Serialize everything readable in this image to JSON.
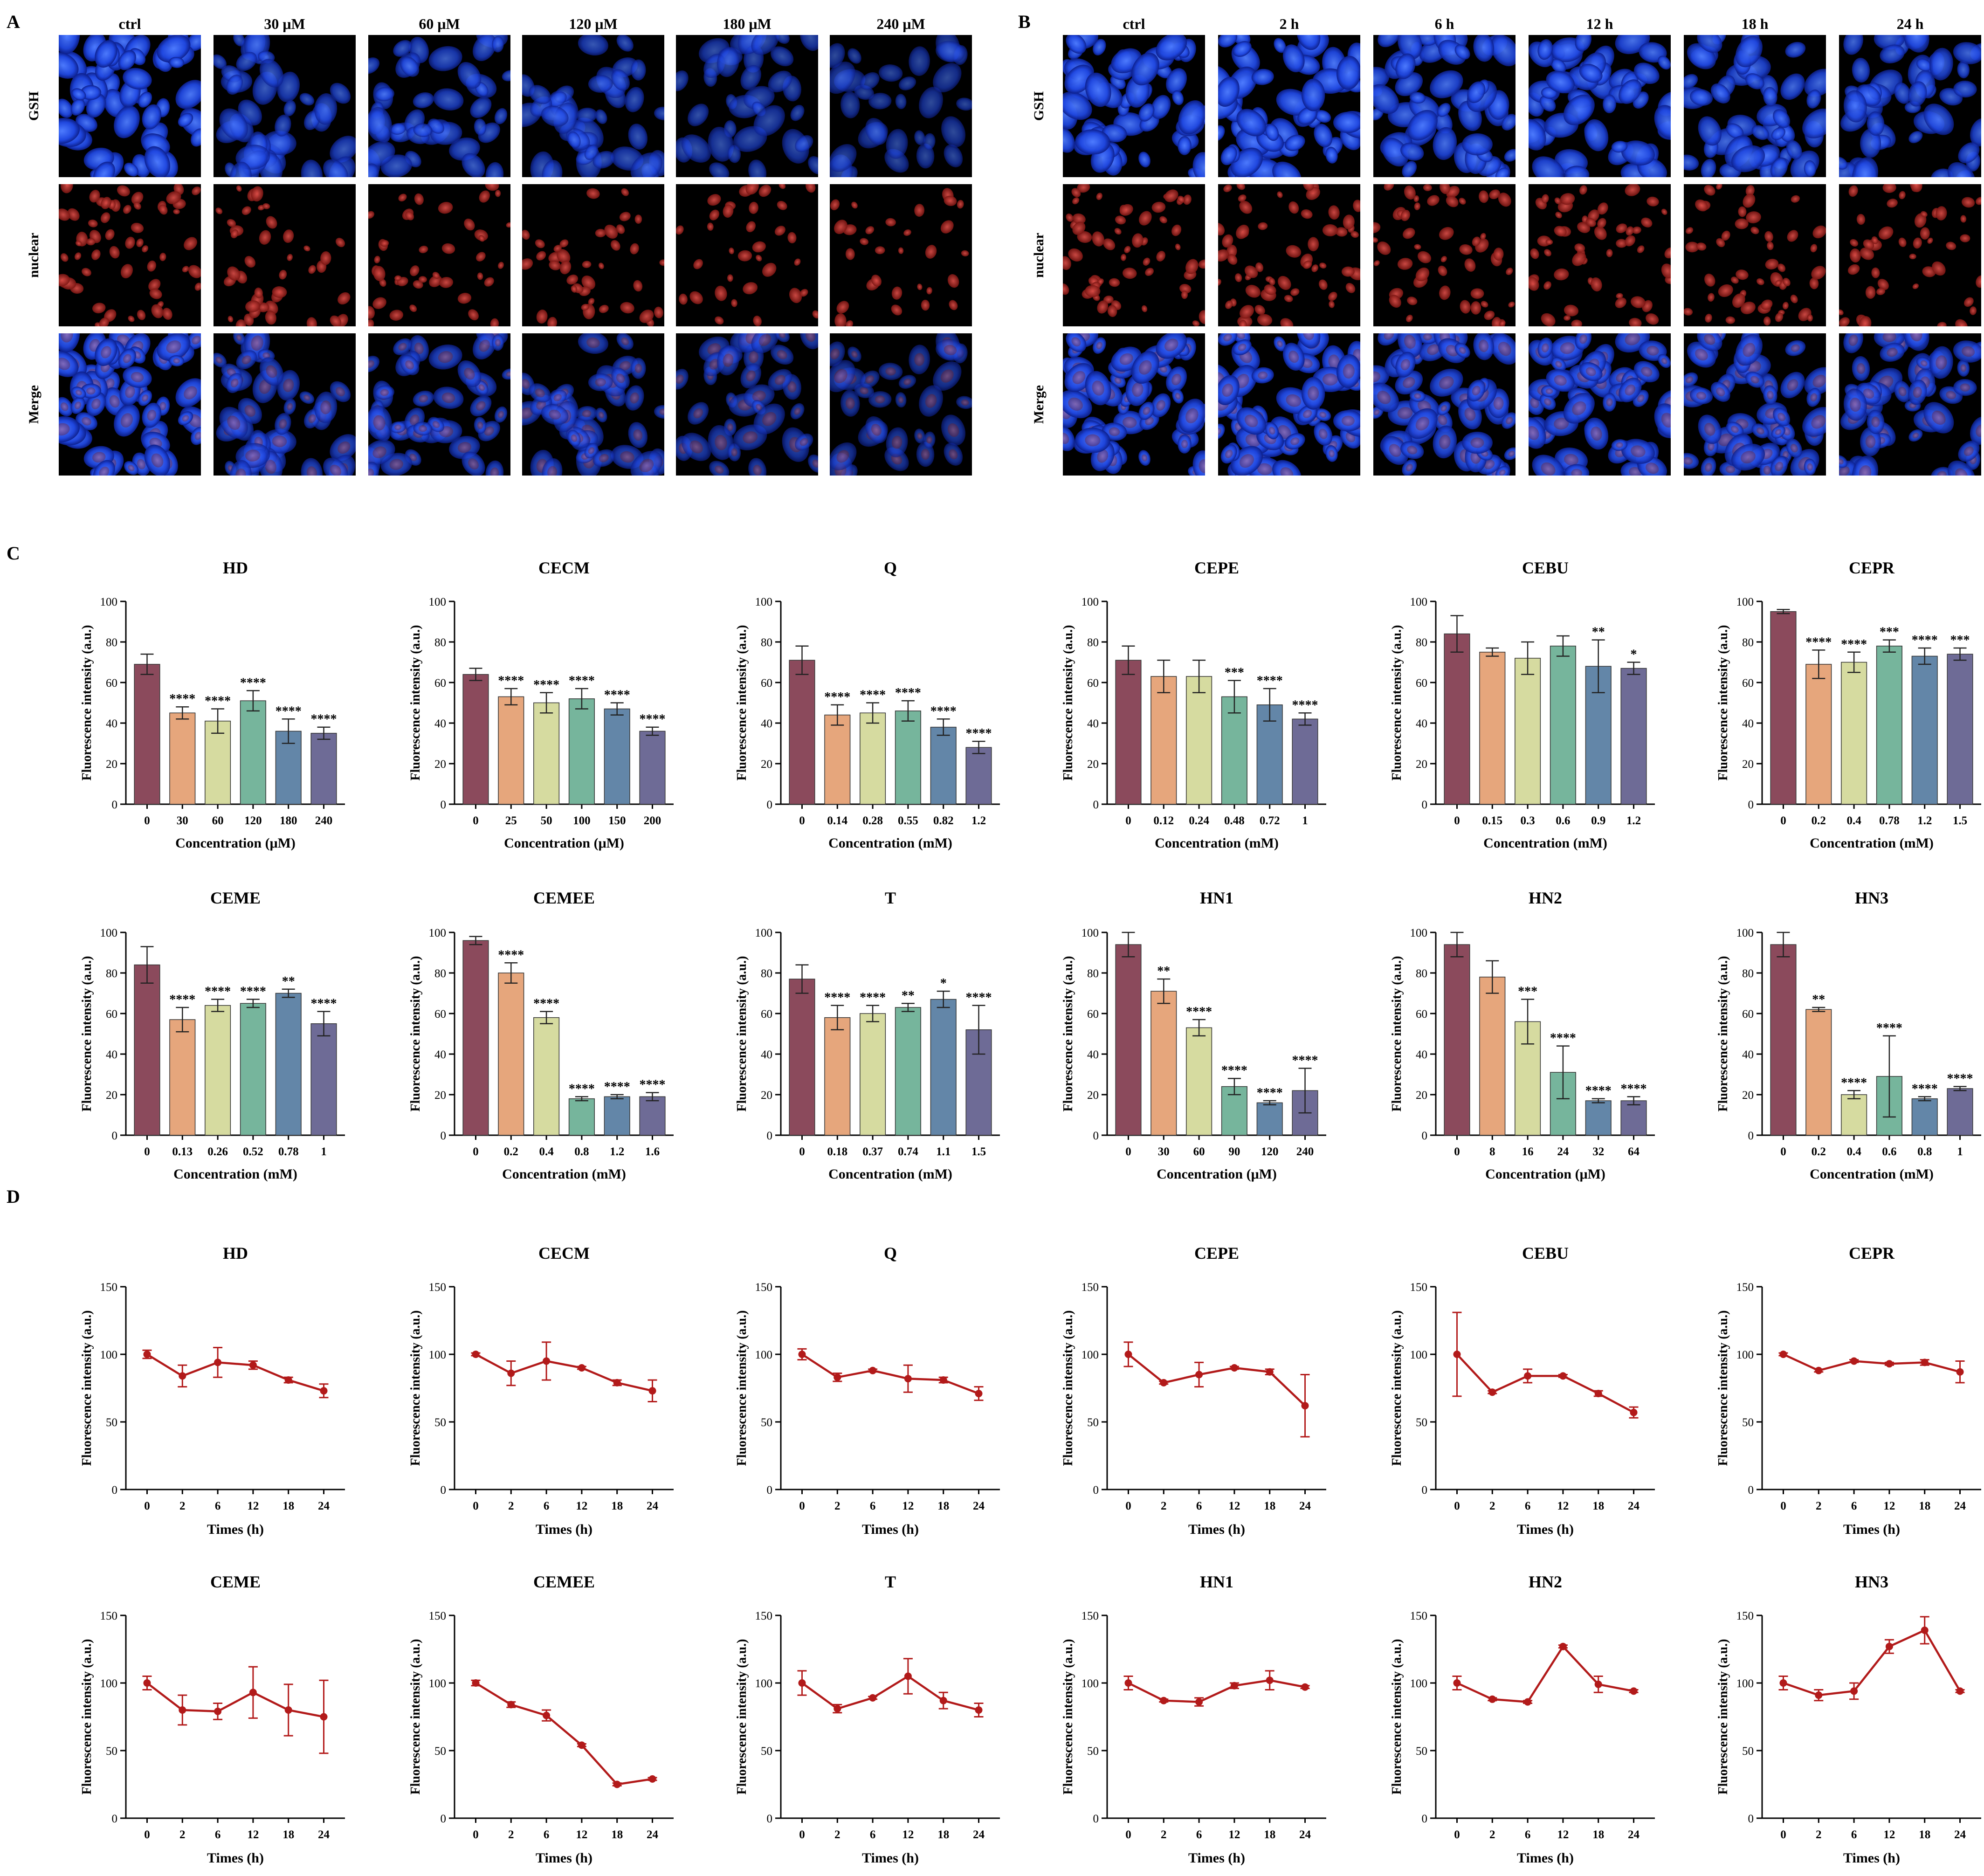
{
  "panel_letters": {
    "A": "A",
    "B": "B",
    "C": "C",
    "D": "D"
  },
  "microscopy": {
    "row_labels": [
      "GSH",
      "nuclear",
      "Merge"
    ],
    "panel_A_columns": [
      "ctrl",
      "30 μM",
      "60 μM",
      "120 μM",
      "180 μM",
      "240 μM"
    ],
    "panel_B_columns": [
      "ctrl",
      "2 h",
      "6 h",
      "12 h",
      "18 h",
      "24 h"
    ],
    "panel_A_signal_level": [
      1.0,
      0.55,
      0.6,
      0.5,
      0.4,
      0.3
    ],
    "panel_B_signal_level": [
      0.95,
      1.0,
      0.85,
      0.9,
      0.8,
      0.75
    ],
    "colors": {
      "gsh": "#2a5cff",
      "nuclear": "#c8322c",
      "background": "#000000"
    }
  },
  "bar_palette": [
    "#8b4a5c",
    "#e6a67c",
    "#d6dba0",
    "#76b59c",
    "#6386a8",
    "#6e6b96"
  ],
  "line_color": "#b21a1a",
  "chart_data": [
    {
      "type": "bar",
      "title": "HD",
      "xlabel": "Concentration (μM)",
      "ylabel": "Fluorescence intensity (a.u.)",
      "ylim": [
        0,
        100
      ],
      "yticks": [
        0,
        20,
        40,
        60,
        80,
        100
      ],
      "categories": [
        "0",
        "30",
        "60",
        "120",
        "180",
        "240"
      ],
      "values": [
        69,
        45,
        41,
        51,
        36,
        35
      ],
      "errors": [
        5,
        3,
        6,
        5,
        6,
        3
      ],
      "significance": [
        "",
        "****",
        "****",
        "****",
        "****",
        "****"
      ]
    },
    {
      "type": "bar",
      "title": "CECM",
      "xlabel": "Concentration (μM)",
      "ylabel": "Fluorescence intensity (a.u.)",
      "ylim": [
        0,
        100
      ],
      "yticks": [
        0,
        20,
        40,
        60,
        80,
        100
      ],
      "categories": [
        "0",
        "25",
        "50",
        "100",
        "150",
        "200"
      ],
      "values": [
        64,
        53,
        50,
        52,
        47,
        36
      ],
      "errors": [
        3,
        4,
        5,
        5,
        3,
        2
      ],
      "significance": [
        "",
        "****",
        "****",
        "****",
        "****",
        "****"
      ]
    },
    {
      "type": "bar",
      "title": "Q",
      "xlabel": "Concentration (mM)",
      "ylabel": "Fluorescence intensity (a.u.)",
      "ylim": [
        0,
        100
      ],
      "yticks": [
        0,
        20,
        40,
        60,
        80,
        100
      ],
      "categories": [
        "0",
        "0.14",
        "0.28",
        "0.55",
        "0.82",
        "1.2"
      ],
      "values": [
        71,
        44,
        45,
        46,
        38,
        28
      ],
      "errors": [
        7,
        5,
        5,
        5,
        4,
        3
      ],
      "significance": [
        "",
        "****",
        "****",
        "****",
        "****",
        "****"
      ]
    },
    {
      "type": "bar",
      "title": "CEPE",
      "xlabel": "Concentration (mM)",
      "ylabel": "Fluorescence intensity (a.u.)",
      "ylim": [
        0,
        100
      ],
      "yticks": [
        0,
        20,
        40,
        60,
        80,
        100
      ],
      "categories": [
        "0",
        "0.12",
        "0.24",
        "0.48",
        "0.72",
        "1"
      ],
      "values": [
        71,
        63,
        63,
        53,
        49,
        42
      ],
      "errors": [
        7,
        8,
        8,
        8,
        8,
        3
      ],
      "significance": [
        "",
        "",
        "",
        "***",
        "****",
        "****"
      ]
    },
    {
      "type": "bar",
      "title": "CEBU",
      "xlabel": "Concentration (mM)",
      "ylabel": "Fluorescence intensity (a.u.)",
      "ylim": [
        0,
        100
      ],
      "yticks": [
        0,
        20,
        40,
        60,
        80,
        100
      ],
      "categories": [
        "0",
        "0.15",
        "0.3",
        "0.6",
        "0.9",
        "1.2"
      ],
      "values": [
        84,
        75,
        72,
        78,
        68,
        67
      ],
      "errors": [
        9,
        2,
        8,
        5,
        13,
        3
      ],
      "significance": [
        "",
        "",
        "",
        "",
        "**",
        "*"
      ]
    },
    {
      "type": "bar",
      "title": "CEPR",
      "xlabel": "Concentration (mM)",
      "ylabel": "Fluorescence intensity (a.u.)",
      "ylim": [
        0,
        100
      ],
      "yticks": [
        0,
        20,
        40,
        60,
        80,
        100
      ],
      "categories": [
        "0",
        "0.2",
        "0.4",
        "0.78",
        "1.2",
        "1.5"
      ],
      "values": [
        95,
        69,
        70,
        78,
        73,
        74
      ],
      "errors": [
        1,
        7,
        5,
        3,
        4,
        3
      ],
      "significance": [
        "",
        "****",
        "****",
        "***",
        "****",
        "***"
      ]
    },
    {
      "type": "bar",
      "title": "CEME",
      "xlabel": "Concentration (mM)",
      "ylabel": "Fluorescence intensity (a.u.)",
      "ylim": [
        0,
        100
      ],
      "yticks": [
        0,
        20,
        40,
        60,
        80,
        100
      ],
      "categories": [
        "0",
        "0.13",
        "0.26",
        "0.52",
        "0.78",
        "1"
      ],
      "values": [
        84,
        57,
        64,
        65,
        70,
        55
      ],
      "errors": [
        9,
        6,
        3,
        2,
        2,
        6
      ],
      "significance": [
        "",
        "****",
        "****",
        "****",
        "**",
        "****"
      ]
    },
    {
      "type": "bar",
      "title": "CEMEE",
      "xlabel": "Concentration (mM)",
      "ylabel": "Fluorescence intensity (a.u.)",
      "ylim": [
        0,
        100
      ],
      "yticks": [
        0,
        20,
        40,
        60,
        80,
        100
      ],
      "categories": [
        "0",
        "0.2",
        "0.4",
        "0.8",
        "1.2",
        "1.6"
      ],
      "values": [
        96,
        80,
        58,
        18,
        19,
        19
      ],
      "errors": [
        2,
        5,
        3,
        1,
        1,
        2
      ],
      "significance": [
        "",
        "****",
        "****",
        "****",
        "****",
        "****"
      ]
    },
    {
      "type": "bar",
      "title": "T",
      "xlabel": "Concentration (mM)",
      "ylabel": "Fluorescence intensity (a.u.)",
      "ylim": [
        0,
        100
      ],
      "yticks": [
        0,
        20,
        40,
        60,
        80,
        100
      ],
      "categories": [
        "0",
        "0.18",
        "0.37",
        "0.74",
        "1.1",
        "1.5"
      ],
      "values": [
        77,
        58,
        60,
        63,
        67,
        52
      ],
      "errors": [
        7,
        6,
        4,
        2,
        4,
        12
      ],
      "significance": [
        "",
        "****",
        "****",
        "**",
        "*",
        "****"
      ]
    },
    {
      "type": "bar",
      "title": "HN1",
      "xlabel": "Concentration (μM)",
      "ylabel": "Fluorescence intensity (a.u.)",
      "ylim": [
        0,
        100
      ],
      "yticks": [
        0,
        20,
        40,
        60,
        80,
        100
      ],
      "categories": [
        "0",
        "30",
        "60",
        "90",
        "120",
        "240"
      ],
      "values": [
        94,
        71,
        53,
        24,
        16,
        22
      ],
      "errors": [
        6,
        6,
        4,
        4,
        1,
        11
      ],
      "significance": [
        "",
        "**",
        "****",
        "****",
        "****",
        "****"
      ]
    },
    {
      "type": "bar",
      "title": "HN2",
      "xlabel": "Concentration (μM)",
      "ylabel": "Fluorescence intensity (a.u.)",
      "ylim": [
        0,
        100
      ],
      "yticks": [
        0,
        20,
        40,
        60,
        80,
        100
      ],
      "categories": [
        "0",
        "8",
        "16",
        "24",
        "32",
        "64"
      ],
      "values": [
        94,
        78,
        56,
        31,
        17,
        17
      ],
      "errors": [
        6,
        8,
        11,
        13,
        1,
        2
      ],
      "significance": [
        "",
        "",
        "***",
        "****",
        "****",
        "****"
      ]
    },
    {
      "type": "bar",
      "title": "HN3",
      "xlabel": "Concentration (mM)",
      "ylabel": "Fluorescence intensity (a.u.)",
      "ylim": [
        0,
        100
      ],
      "yticks": [
        0,
        20,
        40,
        60,
        80,
        100
      ],
      "categories": [
        "0",
        "0.2",
        "0.4",
        "0.6",
        "0.8",
        "1"
      ],
      "values": [
        94,
        62,
        20,
        29,
        18,
        23
      ],
      "errors": [
        6,
        1,
        2,
        20,
        1,
        1
      ],
      "significance": [
        "",
        "**",
        "****",
        "****",
        "****",
        "****"
      ]
    },
    {
      "type": "line",
      "title": "HD",
      "xlabel": "Times (h)",
      "ylabel": "Fluorescence intensity (a.u.)",
      "ylim": [
        0,
        150
      ],
      "yticks": [
        0,
        50,
        100,
        150
      ],
      "x": [
        "0",
        "2",
        "6",
        "12",
        "18",
        "24"
      ],
      "values": [
        100,
        84,
        94,
        92,
        81,
        73
      ],
      "errors": [
        3,
        8,
        11,
        3,
        2,
        5
      ]
    },
    {
      "type": "line",
      "title": "CECM",
      "xlabel": "Times (h)",
      "ylabel": "Fluorescence intensity (a.u.)",
      "ylim": [
        0,
        150
      ],
      "yticks": [
        0,
        50,
        100,
        150
      ],
      "x": [
        "0",
        "2",
        "6",
        "12",
        "18",
        "24"
      ],
      "values": [
        100,
        86,
        95,
        90,
        79,
        73
      ],
      "errors": [
        1,
        9,
        14,
        1,
        2,
        8
      ]
    },
    {
      "type": "line",
      "title": "Q",
      "xlabel": "Times (h)",
      "ylabel": "Fluorescence intensity (a.u.)",
      "ylim": [
        0,
        150
      ],
      "yticks": [
        0,
        50,
        100,
        150
      ],
      "x": [
        "0",
        "2",
        "6",
        "12",
        "18",
        "24"
      ],
      "values": [
        100,
        83,
        88,
        82,
        81,
        71
      ],
      "errors": [
        4,
        3,
        1,
        10,
        2,
        5
      ]
    },
    {
      "type": "line",
      "title": "CEPE",
      "xlabel": "Times (h)",
      "ylabel": "Fluorescence intensity (a.u.)",
      "ylim": [
        0,
        150
      ],
      "yticks": [
        0,
        50,
        100,
        150
      ],
      "x": [
        "0",
        "2",
        "6",
        "12",
        "18",
        "24"
      ],
      "values": [
        100,
        79,
        85,
        90,
        87,
        62
      ],
      "errors": [
        9,
        1,
        9,
        1,
        2,
        23
      ]
    },
    {
      "type": "line",
      "title": "CEBU",
      "xlabel": "Times (h)",
      "ylabel": "Fluorescence intensity (a.u.)",
      "ylim": [
        0,
        150
      ],
      "yticks": [
        0,
        50,
        100,
        150
      ],
      "x": [
        "0",
        "2",
        "6",
        "12",
        "18",
        "24"
      ],
      "values": [
        100,
        72,
        84,
        84,
        71,
        57
      ],
      "errors": [
        31,
        1,
        5,
        1,
        2,
        4
      ]
    },
    {
      "type": "line",
      "title": "CEPR",
      "xlabel": "Times (h)",
      "ylabel": "Fluorescence intensity (a.u.)",
      "ylim": [
        0,
        150
      ],
      "yticks": [
        0,
        50,
        100,
        150
      ],
      "x": [
        "0",
        "2",
        "6",
        "12",
        "18",
        "24"
      ],
      "values": [
        100,
        88,
        95,
        93,
        94,
        87
      ],
      "errors": [
        1,
        1,
        1,
        1,
        2,
        8
      ]
    },
    {
      "type": "line",
      "title": "CEME",
      "xlabel": "Times (h)",
      "ylabel": "Fluorescence intensity (a.u.)",
      "ylim": [
        0,
        150
      ],
      "yticks": [
        0,
        50,
        100,
        150
      ],
      "x": [
        "0",
        "2",
        "6",
        "12",
        "18",
        "24"
      ],
      "values": [
        100,
        80,
        79,
        93,
        80,
        75
      ],
      "errors": [
        5,
        11,
        6,
        19,
        19,
        27
      ]
    },
    {
      "type": "line",
      "title": "CEMEE",
      "xlabel": "Times (h)",
      "ylabel": "Fluorescence intensity (a.u.)",
      "ylim": [
        0,
        150
      ],
      "yticks": [
        0,
        50,
        100,
        150
      ],
      "x": [
        "0",
        "2",
        "6",
        "12",
        "18",
        "24"
      ],
      "values": [
        100,
        84,
        76,
        54,
        25,
        29
      ],
      "errors": [
        2,
        2,
        4,
        1,
        1,
        1
      ]
    },
    {
      "type": "line",
      "title": "T",
      "xlabel": "Times (h)",
      "ylabel": "Fluorescence intensity (a.u.)",
      "ylim": [
        0,
        150
      ],
      "yticks": [
        0,
        50,
        100,
        150
      ],
      "x": [
        "0",
        "2",
        "6",
        "12",
        "18",
        "24"
      ],
      "values": [
        100,
        81,
        89,
        105,
        87,
        80
      ],
      "errors": [
        9,
        3,
        1,
        13,
        6,
        5
      ]
    },
    {
      "type": "line",
      "title": "HN1",
      "xlabel": "Times (h)",
      "ylabel": "Fluorescence intensity (a.u.)",
      "ylim": [
        0,
        150
      ],
      "yticks": [
        0,
        50,
        100,
        150
      ],
      "x": [
        "0",
        "2",
        "6",
        "12",
        "18",
        "24"
      ],
      "values": [
        100,
        87,
        86,
        98,
        102,
        97
      ],
      "errors": [
        5,
        1,
        3,
        2,
        7,
        1
      ]
    },
    {
      "type": "line",
      "title": "HN2",
      "xlabel": "Times (h)",
      "ylabel": "Fluorescence intensity (a.u.)",
      "ylim": [
        0,
        150
      ],
      "yticks": [
        0,
        50,
        100,
        150
      ],
      "x": [
        "0",
        "2",
        "6",
        "12",
        "18",
        "24"
      ],
      "values": [
        100,
        88,
        86,
        127,
        99,
        94
      ],
      "errors": [
        5,
        1,
        1,
        1,
        6,
        1
      ]
    },
    {
      "type": "line",
      "title": "HN3",
      "xlabel": "Times (h)",
      "ylabel": "Fluorescence intensity (a.u.)",
      "ylim": [
        0,
        150
      ],
      "yticks": [
        0,
        50,
        100,
        150
      ],
      "x": [
        "0",
        "2",
        "6",
        "12",
        "18",
        "24"
      ],
      "values": [
        100,
        91,
        94,
        127,
        139,
        94
      ],
      "errors": [
        5,
        4,
        6,
        5,
        10,
        1
      ]
    }
  ]
}
